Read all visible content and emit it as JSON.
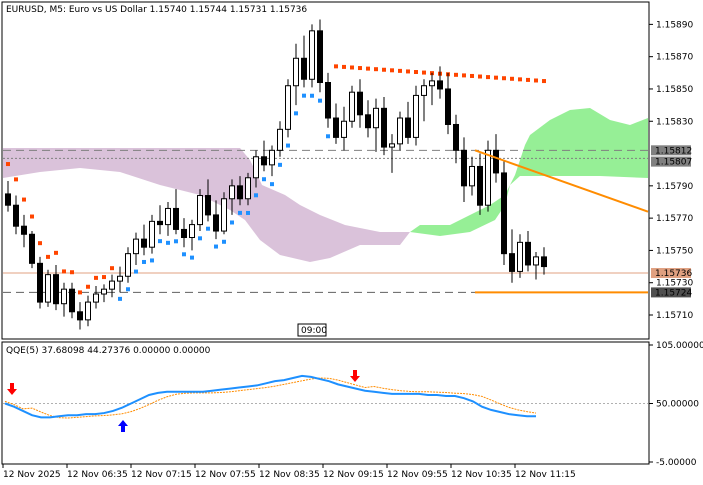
{
  "header": {
    "main_title": "EURUSD, M5:  Euro vs US Dollar  1.15740 1.15744 1.15731 1.15736",
    "qqe_title": "QQE(5) 37.68098 44.27376 0.00000 0.00000"
  },
  "time_marker": "09:00",
  "colors": {
    "bull_candle": "#000000",
    "bear_candle": "#000000",
    "kumo_bear": "#d8bfd8",
    "kumo_bull": "#90ee90",
    "psar_bull": "#1e90ff",
    "psar_bear": "#ff4500",
    "qqe_fast": "#1e90ff",
    "qqe_slow": "#ff8c00",
    "trendline": "#ff8c00",
    "price_line": "#e0a080",
    "arrow_down": "#ff0000",
    "arrow_up": "#0000ff"
  },
  "price_axis": {
    "ticks": [
      "1.15890",
      "1.15870",
      "1.15850",
      "1.15830",
      "1.15790",
      "1.15770",
      "1.15750",
      "1.15730",
      "1.15710"
    ],
    "tag_upper": "1.15812",
    "tag_upper_sub": "1.15807",
    "tag_current": "1.15736",
    "tag_low": "1.15724"
  },
  "qqe_axis": {
    "ticks": [
      "105.00000",
      "50.00000",
      "-5.00000"
    ]
  },
  "time_axis": {
    "labels": [
      "12 Nov 2025",
      "12 Nov 06:35",
      "12 Nov 07:15",
      "12 Nov 07:55",
      "12 Nov 08:35",
      "12 Nov 09:15",
      "12 Nov 09:55",
      "12 Nov 10:35",
      "12 Nov 11:15"
    ]
  },
  "chart_data": {
    "type": "candlestick",
    "symbol": "EURUSD",
    "timeframe": "M5",
    "ylim": [
      1.15697,
      1.15902
    ],
    "candles": [
      [
        1.15785,
        1.15793,
        1.15774,
        1.15778
      ],
      [
        1.15778,
        1.15784,
        1.1576,
        1.15765
      ],
      [
        1.15765,
        1.15772,
        1.15752,
        1.1576
      ],
      [
        1.1576,
        1.15762,
        1.15739,
        1.15742
      ],
      [
        1.15742,
        1.15746,
        1.15714,
        1.15718
      ],
      [
        1.15718,
        1.15738,
        1.15715,
        1.15735
      ],
      [
        1.15735,
        1.15741,
        1.15713,
        1.15717
      ],
      [
        1.15717,
        1.1573,
        1.15709,
        1.15726
      ],
      [
        1.15726,
        1.1573,
        1.15708,
        1.15712
      ],
      [
        1.15712,
        1.15718,
        1.15701,
        1.15707
      ],
      [
        1.15707,
        1.15722,
        1.15703,
        1.15718
      ],
      [
        1.15718,
        1.15728,
        1.15714,
        1.15723
      ],
      [
        1.15723,
        1.15729,
        1.15718,
        1.15726
      ],
      [
        1.15726,
        1.15735,
        1.15721,
        1.15731
      ],
      [
        1.15731,
        1.1574,
        1.15724,
        1.15734
      ],
      [
        1.15734,
        1.15752,
        1.1573,
        1.15748
      ],
      [
        1.15748,
        1.15761,
        1.15741,
        1.15757
      ],
      [
        1.15757,
        1.15766,
        1.15747,
        1.15752
      ],
      [
        1.15752,
        1.15772,
        1.15748,
        1.15768
      ],
      [
        1.15768,
        1.15778,
        1.1576,
        1.15766
      ],
      [
        1.15766,
        1.1578,
        1.15759,
        1.15776
      ],
      [
        1.15776,
        1.15788,
        1.1576,
        1.15763
      ],
      [
        1.15763,
        1.1577,
        1.15752,
        1.15758
      ],
      [
        1.15758,
        1.15769,
        1.1575,
        1.15766
      ],
      [
        1.15766,
        1.15788,
        1.15762,
        1.15784
      ],
      [
        1.15784,
        1.15794,
        1.15768,
        1.15772
      ],
      [
        1.15772,
        1.15781,
        1.15757,
        1.15762
      ],
      [
        1.15762,
        1.15786,
        1.1576,
        1.15782
      ],
      [
        1.15782,
        1.15794,
        1.15772,
        1.1579
      ],
      [
        1.1579,
        1.15796,
        1.15778,
        1.15782
      ],
      [
        1.15782,
        1.15798,
        1.15778,
        1.15795
      ],
      [
        1.15795,
        1.15812,
        1.15789,
        1.15808
      ],
      [
        1.15808,
        1.15818,
        1.15799,
        1.15803
      ],
      [
        1.15803,
        1.15815,
        1.15796,
        1.15812
      ],
      [
        1.15812,
        1.1583,
        1.15808,
        1.15825
      ],
      [
        1.15825,
        1.15856,
        1.1582,
        1.15852
      ],
      [
        1.15852,
        1.15878,
        1.1584,
        1.15869
      ],
      [
        1.15869,
        1.15883,
        1.15851,
        1.15856
      ],
      [
        1.15856,
        1.1589,
        1.15851,
        1.15886
      ],
      [
        1.15886,
        1.15893,
        1.15848,
        1.15854
      ],
      [
        1.15854,
        1.1586,
        1.15826,
        1.15832
      ],
      [
        1.15832,
        1.15841,
        1.15816,
        1.1582
      ],
      [
        1.1582,
        1.15839,
        1.15812,
        1.1583
      ],
      [
        1.1583,
        1.15852,
        1.15826,
        1.15848
      ],
      [
        1.15848,
        1.15856,
        1.15826,
        1.15834
      ],
      [
        1.15834,
        1.15843,
        1.1582,
        1.15826
      ],
      [
        1.15826,
        1.15844,
        1.15811,
        1.15838
      ],
      [
        1.15838,
        1.15845,
        1.15809,
        1.15814
      ],
      [
        1.15814,
        1.15822,
        1.15798,
        1.15816
      ],
      [
        1.15816,
        1.15836,
        1.15812,
        1.15832
      ],
      [
        1.15832,
        1.15842,
        1.15816,
        1.1582
      ],
      [
        1.1582,
        1.15852,
        1.15815,
        1.15846
      ],
      [
        1.15846,
        1.15856,
        1.1583,
        1.15852
      ],
      [
        1.15852,
        1.1586,
        1.1584,
        1.15855
      ],
      [
        1.15855,
        1.15864,
        1.15844,
        1.1585
      ],
      [
        1.1585,
        1.1586,
        1.15822,
        1.15828
      ],
      [
        1.15828,
        1.15834,
        1.15804,
        1.15812
      ],
      [
        1.15812,
        1.1582,
        1.1578,
        1.1579
      ],
      [
        1.1579,
        1.15808,
        1.15784,
        1.15802
      ],
      [
        1.15802,
        1.1581,
        1.15772,
        1.15778
      ],
      [
        1.15778,
        1.15818,
        1.15774,
        1.15812
      ],
      [
        1.15812,
        1.15822,
        1.15792,
        1.15798
      ],
      [
        1.15798,
        1.15806,
        1.15741,
        1.15748
      ],
      [
        1.15748,
        1.15763,
        1.1573,
        1.15737
      ],
      [
        1.15737,
        1.1576,
        1.15733,
        1.15755
      ],
      [
        1.15755,
        1.15762,
        1.15737,
        1.15741
      ],
      [
        1.15741,
        1.15749,
        1.15732,
        1.15746
      ],
      [
        1.15746,
        1.15752,
        1.15735,
        1.1574
      ]
    ],
    "kumo": {
      "bear": {
        "upper": [
          1.15809,
          1.15809,
          1.15809,
          1.15809,
          1.15809,
          1.15809,
          1.15809,
          1.15809,
          1.15809,
          1.15809,
          1.15809,
          1.15809,
          1.15809,
          1.15809,
          1.15809,
          1.15809,
          1.15809,
          1.15809,
          1.15809,
          1.15809,
          1.15809,
          1.15809,
          1.15809,
          1.15809,
          1.15809,
          1.15809,
          1.15809,
          1.15809,
          1.15809,
          1.15809,
          1.15809,
          1.15806,
          1.158,
          1.15792,
          1.15788,
          1.15786
        ],
        "lower": [
          1.15803,
          1.158,
          1.15796,
          1.15792,
          1.1579,
          1.15789,
          1.15791,
          1.15793,
          1.15793,
          1.15792,
          1.1579,
          1.15788,
          1.15787,
          1.15787,
          1.15787,
          1.15787,
          1.15787,
          1.15786,
          1.15785,
          1.15784,
          1.15784,
          1.15784,
          1.15784,
          1.15784,
          1.15784,
          1.15784,
          1.15784,
          1.15782,
          1.15778,
          1.15775,
          1.1577,
          1.15768,
          1.15768,
          1.15768,
          1.15768,
          1.15768
        ]
      }
    },
    "psar_note": "dots above candles in downtrend, below in uptrend",
    "trendline": {
      "start": [
        61,
        1.15812
      ],
      "end": [
        90,
        1.15779
      ]
    },
    "horizontal_levels": [
      1.15812,
      1.15807,
      1.15736,
      1.15724
    ],
    "qqe": {
      "ylim": [
        -5,
        105
      ],
      "level": 50,
      "fast": [
        50,
        47,
        43,
        39,
        37,
        37,
        38,
        39,
        39,
        40,
        40,
        41,
        43,
        46,
        50,
        54,
        58,
        60,
        61,
        61,
        61,
        61,
        61,
        62,
        63,
        64,
        65,
        66,
        67,
        69,
        71,
        72,
        74,
        76,
        75,
        73,
        71,
        68,
        66,
        64,
        62,
        61,
        60,
        59,
        59,
        59,
        59,
        58,
        58,
        57,
        57,
        55,
        52,
        47,
        44,
        42,
        40,
        39,
        38,
        38
      ]
    }
  }
}
